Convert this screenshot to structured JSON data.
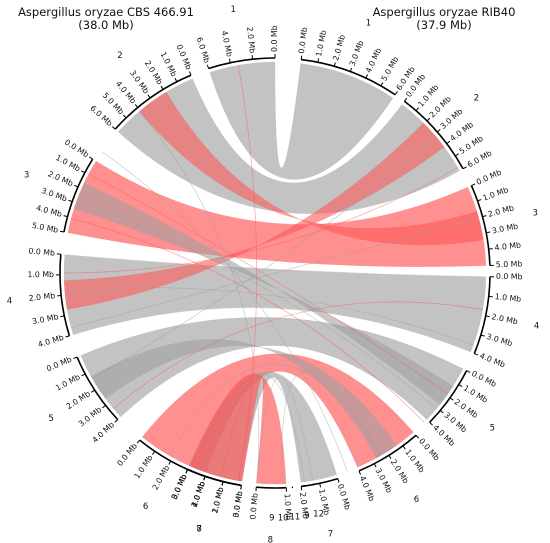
{
  "genome_left": {
    "name": "Aspergillus oryzae CBS 466.91",
    "size": "(38.0 Mb)"
  },
  "genome_right": {
    "name": "Aspergillus oryzae RIB40",
    "size": "(37.9 Mb)"
  },
  "colors": {
    "collinear": "#9e9e9e",
    "inverted": "#ff5555",
    "axis": "#000000"
  },
  "left_chromosomes": [
    {
      "label": "1",
      "ticks": [
        "0.0 Mb",
        "2.0 Mb",
        "4.0 Mb",
        "6.0 Mb"
      ]
    },
    {
      "label": "2",
      "ticks": [
        "0.0 Mb",
        "1.0 Mb",
        "2.0 Mb",
        "3.0 Mb",
        "4.0 Mb",
        "5.0 Mb",
        "6.0 Mb"
      ]
    },
    {
      "label": "3",
      "ticks": [
        "0.0 Mb",
        "1.0 Mb",
        "2.0 Mb",
        "3.0 Mb",
        "4.0 Mb",
        "5.0 Mb"
      ]
    },
    {
      "label": "4",
      "ticks": [
        "0.0 Mb",
        "1.0 Mb",
        "2.0 Mb",
        "3.0 Mb",
        "4.0 Mb"
      ]
    },
    {
      "label": "5",
      "ticks": [
        "0.0 Mb",
        "1.0 Mb",
        "2.0 Mb",
        "3.0 Mb",
        "4.0 Mb"
      ]
    },
    {
      "label": "6",
      "ticks": [
        "0.0 Mb",
        "1.0 Mb",
        "2.0 Mb",
        "3.0 Mb",
        "4.0 Mb"
      ]
    },
    {
      "label": "7",
      "ticks": [
        "0.0 Mb",
        "1.0 Mb",
        "2.0 Mb",
        "3.0 Mb"
      ]
    },
    {
      "label": "8",
      "ticks": [
        "0.0 Mb",
        "1.0 Mb"
      ]
    },
    {
      "label": "9",
      "ticks": []
    },
    {
      "label": "12",
      "ticks": []
    }
  ],
  "right_chromosomes": [
    {
      "label": "1",
      "ticks": [
        "0.0 Mb",
        "1.0 Mb",
        "2.0 Mb",
        "3.0 Mb",
        "4.0 Mb",
        "5.0 Mb",
        "6.0 Mb"
      ]
    },
    {
      "label": "2",
      "ticks": [
        "0.0 Mb",
        "1.0 Mb",
        "2.0 Mb",
        "3.0 Mb",
        "4.0 Mb",
        "5.0 Mb",
        "6.0 Mb"
      ]
    },
    {
      "label": "3",
      "ticks": [
        "0.0 Mb",
        "1.0 Mb",
        "2.0 Mb",
        "3.0 Mb",
        "4.0 Mb",
        "5.0 Mb"
      ]
    },
    {
      "label": "4",
      "ticks": [
        "0.0 Mb",
        "1.0 Mb",
        "2.0 Mb",
        "3.0 Mb",
        "4.0 Mb"
      ]
    },
    {
      "label": "5",
      "ticks": [
        "0.0 Mb",
        "1.0 Mb",
        "2.0 Mb",
        "3.0 Mb",
        "4.0 Mb"
      ]
    },
    {
      "label": "6",
      "ticks": [
        "0.0 Mb",
        "1.0 Mb",
        "2.0 Mb",
        "3.0 Mb",
        "4.0 Mb"
      ]
    },
    {
      "label": "7",
      "ticks": [
        "0.0 Mb",
        "1.0 Mb",
        "2.0 Mb"
      ]
    },
    {
      "label": "8",
      "ticks": [
        "0.0 Mb",
        "1.0 Mb",
        "2.0 Mb",
        "3.0 Mb"
      ]
    },
    {
      "label": "9",
      "ticks": []
    },
    {
      "label": "10",
      "ticks": []
    },
    {
      "label": "11",
      "ticks": []
    }
  ],
  "links": [
    {
      "from": "1",
      "to": "1",
      "strand": "same"
    },
    {
      "from": "2",
      "to": "2",
      "strand": "same"
    },
    {
      "from": "3",
      "to": "3",
      "strand": "inverted"
    },
    {
      "from": "4",
      "to": "4",
      "strand": "same"
    },
    {
      "from": "5",
      "to": "5",
      "strand": "same"
    },
    {
      "from": "6",
      "to": "6",
      "strand": "inverted"
    },
    {
      "from": "7",
      "to": "7",
      "strand": "same"
    },
    {
      "from": "8",
      "to": "8",
      "strand": "inverted"
    },
    {
      "from": "2",
      "to": "3",
      "strand": "inverted"
    },
    {
      "from": "4",
      "to": "2",
      "strand": "inverted"
    },
    {
      "from": "3",
      "to": "5",
      "strand": "same"
    },
    {
      "from": "5",
      "to": "6",
      "strand": "same"
    }
  ]
}
